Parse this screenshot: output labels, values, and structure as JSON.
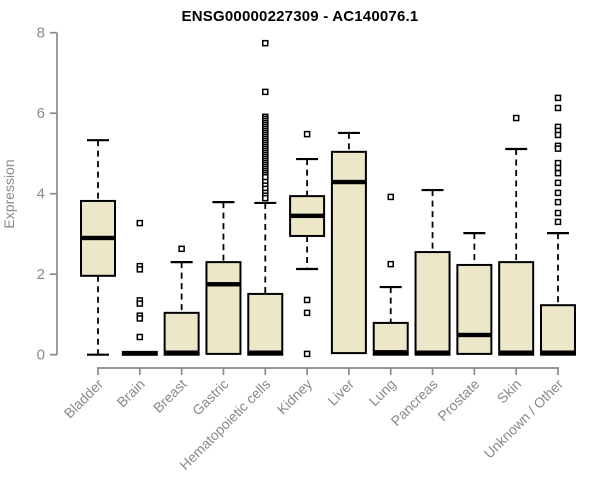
{
  "colors": {
    "box_fill": "#ece7c8",
    "box_border": "#000000",
    "axis": "#8a8a8a",
    "title_color": "#000000"
  },
  "chart_data": {
    "type": "boxplot",
    "title": "ENSG00000227309 - AC140076.1",
    "xlabel": "",
    "ylabel": "Expression",
    "ylim": [
      0,
      8
    ],
    "yticks": [
      0,
      2,
      4,
      6,
      8
    ],
    "grid": false,
    "categories": [
      "Bladder",
      "Brain",
      "Breast",
      "Gastric",
      "Hematopoietic cells",
      "Kidney",
      "Liver",
      "Lung",
      "Pancreas",
      "Prostate",
      "Skin",
      "Unknown / Other"
    ],
    "series": [
      {
        "name": "Bladder",
        "whisker_low": 0,
        "q1": 1.96,
        "median": 2.9,
        "q3": 3.82,
        "whisker_high": 5.33,
        "outliers": []
      },
      {
        "name": "Brain",
        "whisker_low": 0,
        "q1": 0,
        "median": 0.03,
        "q3": 0.07,
        "whisker_high": 0.07,
        "outliers": [
          3.27,
          2.2,
          2.12,
          1.35,
          1.27,
          0.97,
          0.9,
          0.44
        ]
      },
      {
        "name": "Breast",
        "whisker_low": 0,
        "q1": 0,
        "median": 0.05,
        "q3": 1.04,
        "whisker_high": 2.3,
        "outliers": [
          2.63
        ]
      },
      {
        "name": "Gastric",
        "whisker_low": 0,
        "q1": 0.02,
        "median": 1.75,
        "q3": 2.3,
        "whisker_high": 3.79,
        "outliers": []
      },
      {
        "name": "Hematopoietic cells",
        "whisker_low": 0,
        "q1": 0,
        "median": 0.05,
        "q3": 1.51,
        "whisker_high": 3.77,
        "outliers": [
          7.74,
          6.53,
          5.91,
          5.86,
          5.81,
          5.76,
          5.71,
          5.66,
          5.61,
          5.56,
          5.51,
          5.46,
          5.41,
          5.36,
          5.31,
          5.26,
          5.21,
          5.16,
          5.11,
          5.06,
          5.01,
          4.96,
          4.91,
          4.86,
          4.81,
          4.76,
          4.71,
          4.66,
          4.61,
          4.56,
          4.51,
          4.46,
          4.41,
          4.29,
          4.2,
          4.12,
          4.02,
          3.95,
          3.89
        ]
      },
      {
        "name": "Kidney",
        "whisker_low": 2.13,
        "q1": 2.95,
        "median": 3.45,
        "q3": 3.94,
        "whisker_high": 4.86,
        "outliers": [
          5.48,
          1.36,
          1.04,
          0.02
        ]
      },
      {
        "name": "Liver",
        "whisker_low": 0.04,
        "q1": 0.04,
        "median": 4.29,
        "q3": 5.04,
        "whisker_high": 5.51,
        "outliers": []
      },
      {
        "name": "Lung",
        "whisker_low": 0,
        "q1": 0,
        "median": 0.06,
        "q3": 0.79,
        "whisker_high": 1.68,
        "outliers": [
          3.92,
          2.25
        ]
      },
      {
        "name": "Pancreas",
        "whisker_low": 0,
        "q1": 0,
        "median": 0.05,
        "q3": 2.55,
        "whisker_high": 4.09,
        "outliers": []
      },
      {
        "name": "Prostate",
        "whisker_low": 0,
        "q1": 0.02,
        "median": 0.49,
        "q3": 2.23,
        "whisker_high": 3.02,
        "outliers": []
      },
      {
        "name": "Skin",
        "whisker_low": 0,
        "q1": 0,
        "median": 0.05,
        "q3": 2.3,
        "whisker_high": 5.11,
        "outliers": [
          5.88
        ]
      },
      {
        "name": "Unknown / Other",
        "whisker_low": 0,
        "q1": 0,
        "median": 0.05,
        "q3": 1.23,
        "whisker_high": 3.02,
        "outliers": [
          6.38,
          6.13,
          5.66,
          5.56,
          5.46,
          5.19,
          5.12,
          4.76,
          4.64,
          4.51,
          4.27,
          4.02,
          3.79,
          3.52,
          3.3
        ]
      }
    ]
  }
}
